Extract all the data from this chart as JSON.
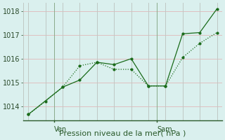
{
  "line1_x": [
    0,
    1,
    2,
    3,
    4,
    5,
    6,
    7,
    8,
    9,
    10,
    11
  ],
  "line1_y": [
    1013.65,
    1014.2,
    1014.8,
    1015.7,
    1015.85,
    1015.55,
    1015.55,
    1014.85,
    1014.85,
    1016.05,
    1016.65,
    1017.1
  ],
  "line2_x": [
    0,
    2,
    3,
    4,
    5,
    6,
    7,
    8,
    9,
    10,
    11
  ],
  "line2_y": [
    1013.65,
    1014.8,
    1015.1,
    1015.85,
    1015.75,
    1016.0,
    1014.85,
    1014.85,
    1017.05,
    1017.1,
    1018.1
  ],
  "line_color": "#1a6b1a",
  "background_color": "#daf0ee",
  "grid_color_v": "#c0c8c4",
  "grid_color_h": "#e0c0c0",
  "xlabel": "Pression niveau de la mer( hPa )",
  "ylim_min": 1013.4,
  "ylim_max": 1018.35,
  "yticks": [
    1014,
    1015,
    1016,
    1017,
    1018
  ],
  "xlim_min": -0.3,
  "xlim_max": 11.3,
  "ven_x": 1.5,
  "sam_x": 7.5,
  "ven_label": "Ven",
  "sam_label": "Sam",
  "xlabel_fontsize": 8,
  "ytick_fontsize": 7
}
